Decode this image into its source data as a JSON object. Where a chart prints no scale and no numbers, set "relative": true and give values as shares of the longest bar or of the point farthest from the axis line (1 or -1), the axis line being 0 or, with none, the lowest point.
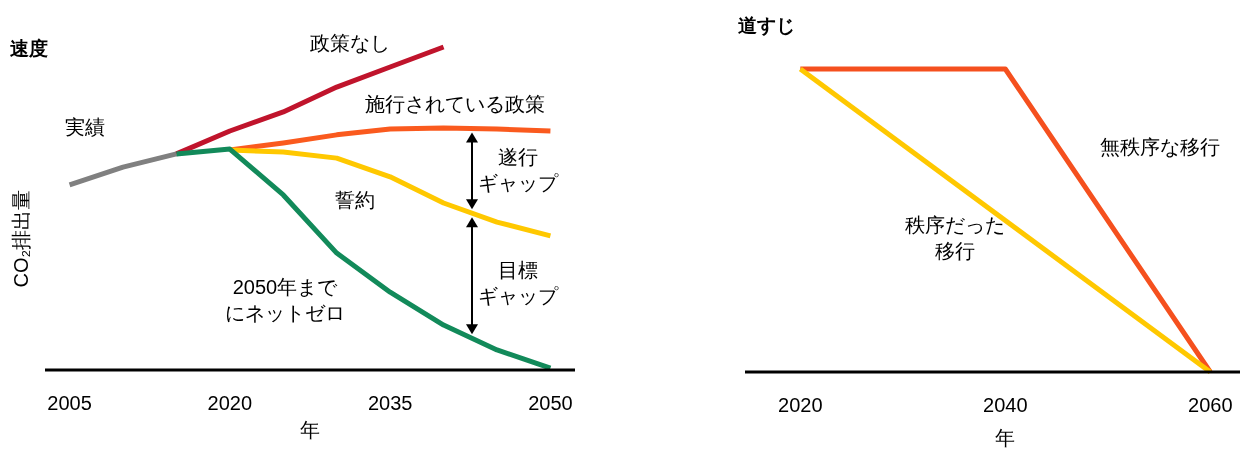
{
  "chart_data": [
    {
      "type": "line",
      "title": "速度",
      "xlabel": "年",
      "ylabel": "CO₂排出量",
      "relative": true,
      "xlim": [
        2002.7,
        2052.3
      ],
      "xticks": [
        2005,
        2020,
        2035,
        2050
      ],
      "tick_labels": "x",
      "grid": false,
      "legend": false,
      "marker": "none",
      "line_style": "solid",
      "series": [
        {
          "name": "実績",
          "color": "#808080",
          "x": [
            2005,
            2010,
            2015
          ],
          "values": [
            0.573,
            0.628,
            0.669
          ]
        },
        {
          "name": "政策なし",
          "color": "#c0142c",
          "x": [
            2015,
            2020,
            2025,
            2030,
            2035,
            2040
          ],
          "values": [
            0.669,
            0.74,
            0.799,
            0.876,
            0.938,
            1.0
          ]
        },
        {
          "name": "施行されている政策",
          "color": "#fa5a1e",
          "x": [
            2020,
            2025,
            2030,
            2035,
            2040,
            2045,
            2050
          ],
          "values": [
            0.681,
            0.703,
            0.728,
            0.746,
            0.749,
            0.746,
            0.74
          ]
        },
        {
          "name": "誓約",
          "color": "#ffc800",
          "x": [
            2020,
            2025,
            2030,
            2035,
            2040,
            2045,
            2050
          ],
          "values": [
            0.681,
            0.675,
            0.656,
            0.598,
            0.517,
            0.458,
            0.415
          ]
        },
        {
          "name": "2050年までにネットゼロ",
          "color": "#128a5a",
          "x": [
            2015,
            2020,
            2025,
            2030,
            2035,
            2040,
            2045,
            2050
          ],
          "values": [
            0.669,
            0.684,
            0.542,
            0.362,
            0.241,
            0.139,
            0.062,
            0.006
          ]
        }
      ],
      "annotations": [
        "遂行ギャップ",
        "目標ギャップ"
      ]
    },
    {
      "type": "line",
      "title": "道すじ",
      "xlabel": "年",
      "relative": true,
      "xlim": [
        2014.6,
        2062.9
      ],
      "xticks": [
        2020,
        2040,
        2060
      ],
      "tick_labels": "x",
      "grid": false,
      "legend": false,
      "marker": "none",
      "line_style": "solid",
      "series": [
        {
          "name": "無秩序な移行",
          "color": "#f5501e",
          "x": [
            2020,
            2040,
            2060
          ],
          "values": [
            1,
            1,
            0
          ]
        },
        {
          "name": "秩序だった移行",
          "color": "#ffc800",
          "x": [
            2020,
            2060
          ],
          "values": [
            1,
            0
          ]
        }
      ]
    }
  ]
}
